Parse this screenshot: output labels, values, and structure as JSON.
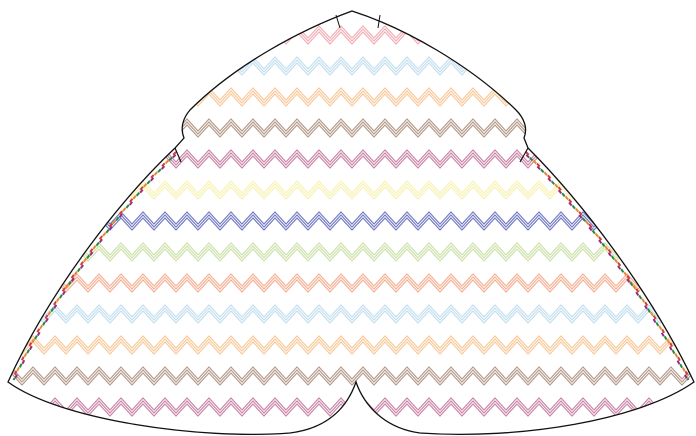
{
  "pattern": {
    "name": "chevron-stripes",
    "band_colors": [
      "#f0a0a8",
      "#b8d8ec",
      "#f7c08a",
      "#a88a78",
      "#c07098",
      "#f6f0a8",
      "#5c64b8",
      "#c4dc9c",
      "#f3a282",
      "#b8d8ec",
      "#f7c08a",
      "#a88a78",
      "#c07098"
    ],
    "outline_color": "#111111",
    "edge_trim_colors": [
      "#d24030",
      "#e88830",
      "#2a8a3a",
      "#9a2a8a"
    ]
  }
}
